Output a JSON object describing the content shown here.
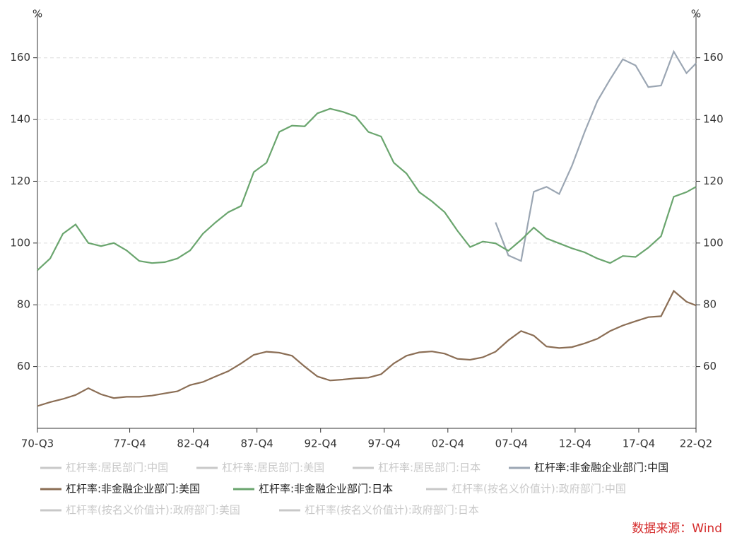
{
  "chart_data": {
    "type": "line",
    "y_unit": "%",
    "y2_unit": "%",
    "source": "数据来源：Wind",
    "xlim": [
      1970.5,
      2022.25
    ],
    "xticks": [
      {
        "value": 1970.5,
        "label": "70-Q3"
      },
      {
        "value": 1977.75,
        "label": "77-Q4"
      },
      {
        "value": 1982.75,
        "label": "82-Q4"
      },
      {
        "value": 1987.75,
        "label": "87-Q4"
      },
      {
        "value": 1992.75,
        "label": "92-Q4"
      },
      {
        "value": 1997.75,
        "label": "97-Q4"
      },
      {
        "value": 2002.75,
        "label": "02-Q4"
      },
      {
        "value": 2007.75,
        "label": "07-Q4"
      },
      {
        "value": 2012.75,
        "label": "12-Q4"
      },
      {
        "value": 2017.75,
        "label": "17-Q4"
      },
      {
        "value": 2022.25,
        "label": "22-Q2"
      }
    ],
    "ylim": [
      40,
      170
    ],
    "yticks": [
      60,
      80,
      100,
      120,
      140,
      160
    ],
    "y2lim": [
      40,
      170
    ],
    "y2ticks": [
      60,
      80,
      100,
      120,
      140,
      160
    ],
    "grid": true,
    "x": [
      1970.5,
      1971.5,
      1972.5,
      1973.5,
      1974.5,
      1975.5,
      1976.5,
      1977.5,
      1978.5,
      1979.5,
      1980.5,
      1981.5,
      1982.5,
      1983.5,
      1984.5,
      1985.5,
      1986.5,
      1987.5,
      1988.5,
      1989.5,
      1990.5,
      1991.5,
      1992.5,
      1993.5,
      1994.5,
      1995.5,
      1996.5,
      1997.5,
      1998.5,
      1999.5,
      2000.5,
      2001.5,
      2002.5,
      2003.5,
      2004.5,
      2005.5,
      2006.5,
      2007.5,
      2008.5,
      2009.5,
      2010.5,
      2011.5,
      2012.5,
      2013.5,
      2014.5,
      2015.5,
      2016.5,
      2017.5,
      2018.5,
      2019.5,
      2020.5,
      2021.5,
      2022.25
    ],
    "series": [
      {
        "name": "杠杆率:居民部门:中国",
        "color": "#c8c8c8",
        "hidden": true
      },
      {
        "name": "杠杆率:居民部门:美国",
        "color": "#c8c8c8",
        "hidden": true
      },
      {
        "name": "杠杆率:居民部门:日本",
        "color": "#c8c8c8",
        "hidden": true
      },
      {
        "name": "杠杆率:非金融企业部门:中国",
        "color": "#9ba6b3",
        "values": [
          null,
          null,
          null,
          null,
          null,
          null,
          null,
          null,
          null,
          null,
          null,
          null,
          null,
          null,
          null,
          null,
          null,
          null,
          null,
          null,
          null,
          null,
          null,
          null,
          null,
          null,
          null,
          null,
          null,
          null,
          null,
          null,
          null,
          null,
          null,
          null,
          106.7,
          96,
          94.2,
          116.6,
          118.2,
          115.9,
          125,
          136,
          146,
          153,
          159.5,
          157.5,
          150.5,
          151,
          162,
          155,
          158.2
        ]
      },
      {
        "name": "杠杆率:非金融企业部门:美国",
        "color": "#8b6e55",
        "values": [
          47.2,
          48.5,
          49.5,
          50.8,
          53,
          51,
          49.8,
          50.2,
          50.2,
          50.6,
          51.3,
          52,
          54,
          55,
          56.8,
          58.5,
          61,
          63.8,
          64.8,
          64.5,
          63.5,
          60,
          56.8,
          55.5,
          55.8,
          56.2,
          56.4,
          57.5,
          61,
          63.5,
          64.6,
          64.9,
          64.2,
          62.5,
          62.2,
          63,
          64.8,
          68.5,
          71.5,
          70,
          66.5,
          66,
          66.3,
          67.5,
          69,
          71.5,
          73.3,
          74.7,
          76,
          76.3,
          84.5,
          81,
          79.8
        ]
      },
      {
        "name": "杠杆率:非金融企业部门:日本",
        "color": "#6aa56e",
        "values": [
          91.2,
          95,
          103,
          106,
          100,
          99,
          100,
          97.6,
          94.2,
          93.5,
          93.8,
          95,
          97.6,
          103,
          106.7,
          110,
          112,
          123,
          126,
          136,
          138,
          137.8,
          142,
          143.5,
          142.5,
          141,
          136,
          134.5,
          126,
          122.5,
          116.5,
          113.5,
          110,
          104,
          98.7,
          100.5,
          99.9,
          97.5,
          101,
          105,
          101.5,
          99.9,
          98.3,
          97,
          95,
          93.5,
          95.8,
          95.5,
          98.5,
          102.2,
          115,
          116.5,
          118.2
        ]
      },
      {
        "name": "杠杆率(按名义价值计):政府部门:中国",
        "color": "#c8c8c8",
        "hidden": true
      },
      {
        "name": "杠杆率(按名义价值计):政府部门:美国",
        "color": "#c8c8c8",
        "hidden": true
      },
      {
        "name": "杠杆率(按名义价值计):政府部门:日本",
        "color": "#c8c8c8",
        "hidden": true
      }
    ]
  }
}
